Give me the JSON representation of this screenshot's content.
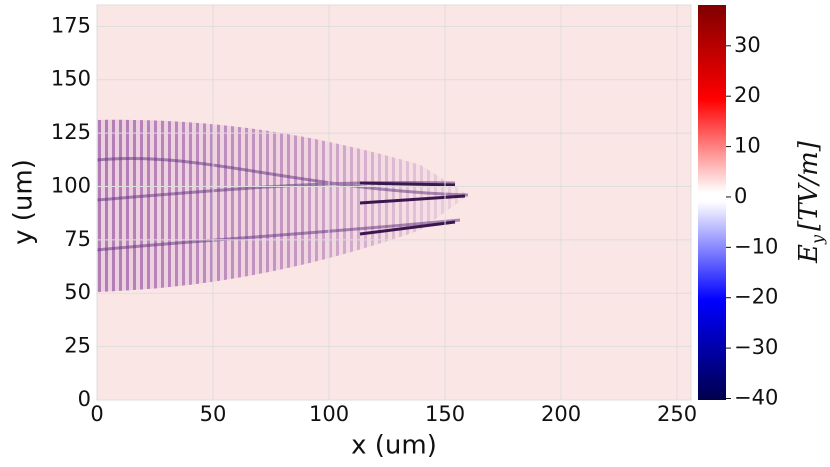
{
  "chart_data": {
    "type": "heatmap",
    "xlabel": "x (um)",
    "ylabel": "y (um)",
    "xlim": [
      0,
      256
    ],
    "ylim": [
      0,
      185
    ],
    "xticks": [
      0,
      50,
      100,
      150,
      200,
      250
    ],
    "yticks": [
      0,
      25,
      50,
      75,
      100,
      125,
      150,
      175
    ],
    "grid": true,
    "colorbar": {
      "label_symbol": "E",
      "label_subscript": "y",
      "label_unit": "[TV/m]",
      "clim": [
        -40.3,
        38.1
      ],
      "ticks": [
        {
          "value": -40,
          "label": "−40"
        },
        {
          "value": -30,
          "label": "−30"
        },
        {
          "value": -20,
          "label": "−20"
        },
        {
          "value": -10,
          "label": "−10"
        },
        0,
        10,
        20,
        30
      ],
      "colorscale": [
        {
          "value": -40.3,
          "color": "#00004c"
        },
        {
          "value": -20.5,
          "color": "#0000ff"
        },
        {
          "value": -0.9,
          "color": "#ffffff"
        },
        {
          "value": 0.9,
          "color": "#ffffff"
        },
        {
          "value": 19.4,
          "color": "#ff0000"
        },
        {
          "value": 38.1,
          "color": "#800000"
        }
      ]
    }
  }
}
